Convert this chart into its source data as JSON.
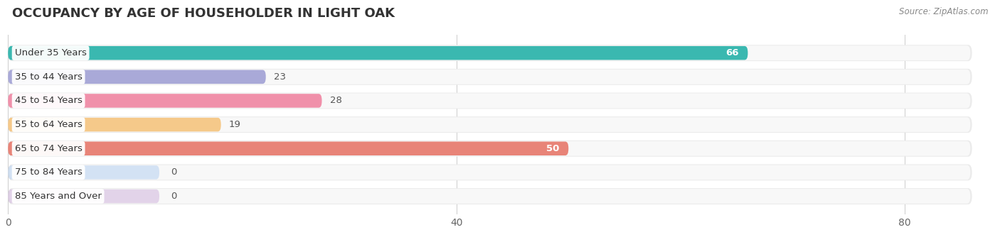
{
  "title": "OCCUPANCY BY AGE OF HOUSEHOLDER IN LIGHT OAK",
  "source": "Source: ZipAtlas.com",
  "categories": [
    "Under 35 Years",
    "35 to 44 Years",
    "45 to 54 Years",
    "55 to 64 Years",
    "65 to 74 Years",
    "75 to 84 Years",
    "85 Years and Over"
  ],
  "values": [
    66,
    23,
    28,
    19,
    50,
    0,
    0
  ],
  "bar_colors": [
    "#3ab8b0",
    "#a9a9d8",
    "#f090aa",
    "#f5c98a",
    "#e88478",
    "#a8c8f0",
    "#c8a8d8"
  ],
  "value_label_inside": [
    true,
    false,
    false,
    false,
    true,
    false,
    false
  ],
  "background_color": "#ffffff",
  "row_bg_color": "#ebebeb",
  "xlim_max": 86,
  "xticks": [
    0,
    40,
    80
  ],
  "title_fontsize": 13,
  "bar_height": 0.58,
  "label_fontsize": 9.5,
  "value_fontsize": 9.5,
  "tick_fontsize": 10,
  "source_fontsize": 8.5
}
